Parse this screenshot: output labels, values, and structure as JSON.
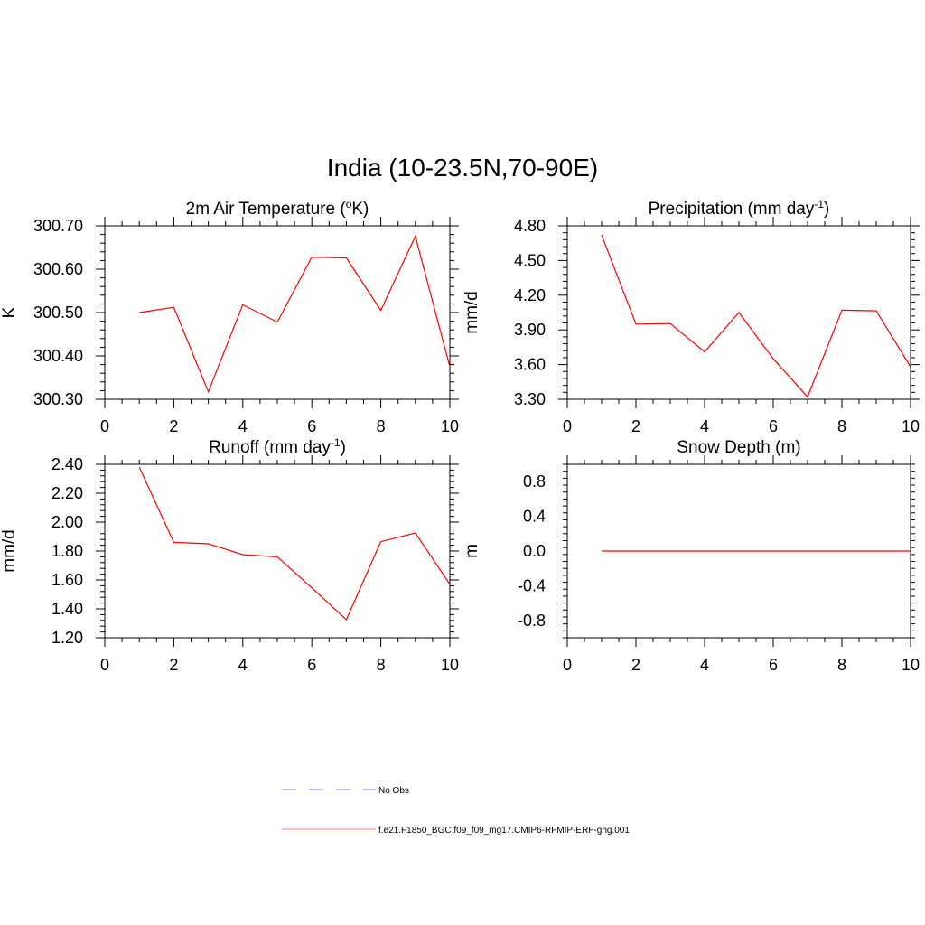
{
  "figure": {
    "title": "India (10-23.5N,70-90E)"
  },
  "chart_data": [
    {
      "type": "line",
      "title": "2m Air Temperature (°K)",
      "title_parts": [
        "2m Air Temperature (",
        "o",
        "K)"
      ],
      "title_sup_index": 1,
      "xlabel": "",
      "ylabel": "K",
      "xlim": [
        0,
        10
      ],
      "ylim": [
        300.3,
        300.7
      ],
      "xticks": [
        "0",
        "2",
        "4",
        "6",
        "8",
        "10"
      ],
      "yticks": [
        "300.30",
        "300.40",
        "300.50",
        "300.60",
        "300.70"
      ],
      "x": [
        1,
        2,
        3,
        4,
        5,
        6,
        7,
        8,
        9,
        10
      ],
      "series": [
        {
          "values": [
            300.5,
            300.512,
            300.317,
            300.518,
            300.478,
            300.628,
            300.626,
            300.505,
            300.676,
            300.375
          ]
        }
      ]
    },
    {
      "type": "line",
      "title": "Precipitation (mm day-1)",
      "title_parts": [
        "Precipitation (mm day",
        "-1",
        ")"
      ],
      "title_sup_index": 1,
      "xlabel": "",
      "ylabel": "mm/d",
      "xlim": [
        0,
        10
      ],
      "ylim": [
        3.3,
        4.8
      ],
      "xticks": [
        "0",
        "2",
        "4",
        "6",
        "8",
        "10"
      ],
      "yticks": [
        "3.30",
        "3.60",
        "3.90",
        "4.20",
        "4.50",
        "4.80"
      ],
      "x": [
        1,
        2,
        3,
        4,
        5,
        6,
        7,
        8,
        9,
        10
      ],
      "series": [
        {
          "values": [
            4.72,
            3.95,
            3.955,
            3.71,
            4.05,
            3.65,
            3.32,
            4.07,
            4.065,
            3.58
          ]
        }
      ]
    },
    {
      "type": "line",
      "title": "Runoff (mm day-1)",
      "title_parts": [
        "Runoff (mm day",
        "-1",
        ")"
      ],
      "title_sup_index": 1,
      "xlabel": "",
      "ylabel": "mm/d",
      "xlim": [
        0,
        10
      ],
      "ylim": [
        1.2,
        2.4
      ],
      "xticks": [
        "0",
        "2",
        "4",
        "6",
        "8",
        "10"
      ],
      "yticks": [
        "1.20",
        "1.40",
        "1.60",
        "1.80",
        "2.00",
        "2.20",
        "2.40"
      ],
      "x": [
        1,
        2,
        3,
        4,
        5,
        6,
        7,
        8,
        9,
        10
      ],
      "series": [
        {
          "values": [
            2.38,
            1.86,
            1.85,
            1.775,
            1.76,
            1.545,
            1.325,
            1.865,
            1.925,
            1.57
          ]
        }
      ]
    },
    {
      "type": "line",
      "title": "Snow Depth (m)",
      "title_parts": [
        "Snow Depth (m)"
      ],
      "title_sup_index": -1,
      "xlabel": "",
      "ylabel": "m",
      "xlim": [
        0,
        10
      ],
      "ylim": [
        -1.0,
        1.0
      ],
      "xticks": [
        "0",
        "2",
        "4",
        "6",
        "8",
        "10"
      ],
      "yticks": [
        "-0.8",
        "-0.4",
        "0.0",
        "0.4",
        "0.8"
      ],
      "ytick_values": [
        -0.8,
        -0.4,
        0.0,
        0.4,
        0.8
      ],
      "x": [
        1,
        2,
        3,
        4,
        5,
        6,
        7,
        8,
        9,
        10
      ],
      "series": [
        {
          "values": [
            0,
            0,
            0,
            0,
            0,
            0,
            0,
            0,
            0,
            0
          ]
        }
      ]
    }
  ],
  "legend": {
    "items": [
      {
        "label": "No Obs",
        "color": "#9999ff",
        "style": "dashed"
      },
      {
        "label": "f.e21.F1850_BGC.f09_f09_mg17.CMIP6-RFMIP-ERF-ghg.001",
        "color": "#ff9999",
        "style": "solid"
      }
    ]
  },
  "colors": {
    "series": "#ff0000",
    "axis": "#000000"
  }
}
